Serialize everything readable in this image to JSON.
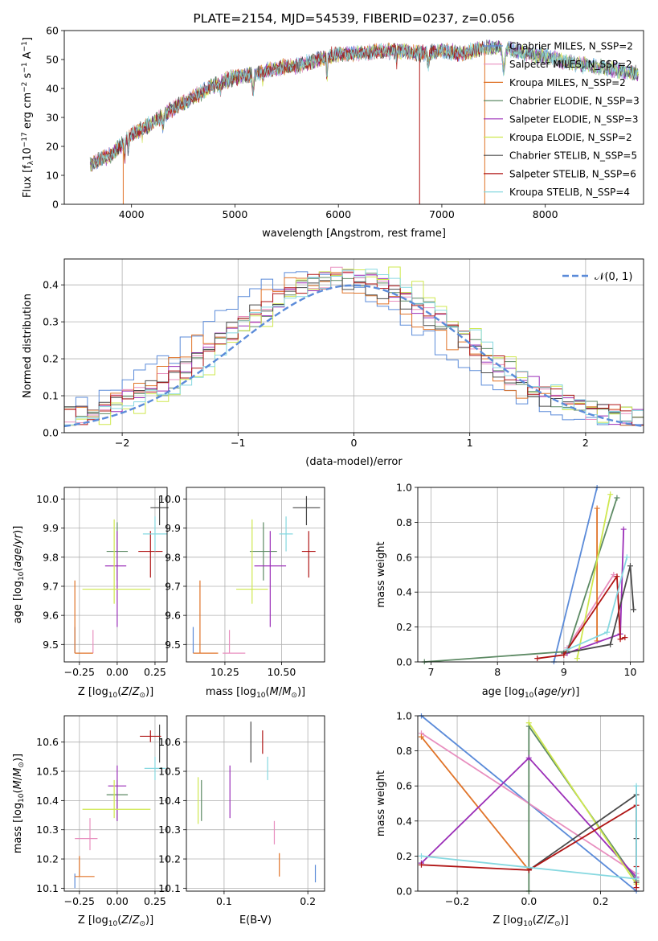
{
  "colors": {
    "grid": "#b0b0b0",
    "normal_curve": "#5b8bd9",
    "series": [
      "#5b8bd9",
      "#e88fbf",
      "#e07328",
      "#5d8a64",
      "#9b2fb8",
      "#cfe84f",
      "#4a4a4a",
      "#b01515",
      "#86d8e0"
    ]
  },
  "chart_data": [
    {
      "id": "spectrum",
      "type": "line",
      "title": "PLATE=2154, MJD=54539, FIBERID=0237, z=0.056",
      "xlabel": "wavelength [Angstrom, rest frame]",
      "ylabel": "Flux [f_λ 10^-17 erg cm^-2 s^-1 A^-1]",
      "xlim": [
        3350,
        8950
      ],
      "ylim": [
        0,
        60
      ],
      "xticks": [
        "4000",
        "5000",
        "6000",
        "7000",
        "8000"
      ],
      "yticks": [
        "0",
        "10",
        "20",
        "30",
        "40",
        "50",
        "60"
      ],
      "legend_position": "right",
      "legend": [
        "Chabrier MILES, N_SSP=2",
        "Salpeter MILES, N_SSP=2",
        "Kroupa MILES, N_SSP=2",
        "Chabrier ELODIE, N_SSP=3",
        "Salpeter ELODIE, N_SSP=3",
        "Kroupa ELODIE, N_SSP=2",
        "Chabrier STELIB, N_SSP=5",
        "Salpeter STELIB, N_SSP=6",
        "Kroupa STELIB, N_SSP=4"
      ],
      "continuum": [
        [
          3600,
          14
        ],
        [
          3800,
          17
        ],
        [
          4000,
          24
        ],
        [
          4200,
          28
        ],
        [
          4400,
          33
        ],
        [
          4600,
          37
        ],
        [
          4800,
          41
        ],
        [
          5000,
          44
        ],
        [
          5200,
          45
        ],
        [
          5400,
          47
        ],
        [
          5600,
          48
        ],
        [
          5800,
          50
        ],
        [
          6000,
          52
        ],
        [
          6200,
          52
        ],
        [
          6400,
          53
        ],
        [
          6600,
          53
        ],
        [
          6800,
          52
        ],
        [
          7000,
          53
        ],
        [
          7200,
          52
        ],
        [
          7400,
          54
        ],
        [
          7600,
          54
        ],
        [
          7800,
          52
        ],
        [
          8000,
          51
        ],
        [
          8200,
          49
        ],
        [
          8400,
          48
        ],
        [
          8600,
          47
        ],
        [
          8900,
          45
        ]
      ],
      "series_ranges": [
        [
          3600,
          8900
        ],
        [
          3600,
          8900
        ],
        [
          3600,
          7400
        ],
        [
          3600,
          8900
        ],
        [
          3600,
          8900
        ],
        [
          3600,
          8900
        ],
        [
          3600,
          8900
        ],
        [
          3600,
          7400
        ],
        [
          3600,
          8900
        ]
      ]
    },
    {
      "id": "residuals",
      "type": "histogram",
      "xlabel": "(data-model)/error",
      "ylabel": "Normed distribution",
      "xlim": [
        -2.5,
        2.5
      ],
      "ylim": [
        0,
        0.47
      ],
      "xticks": [
        "−2",
        "−1",
        "0",
        "1",
        "2"
      ],
      "yticks": [
        "0.0",
        "0.1",
        "0.2",
        "0.3",
        "0.4"
      ],
      "legend_position": "top-right",
      "normal_label": "𝒩(0, 1)"
    },
    {
      "id": "Z-age",
      "type": "errorbar",
      "xlabel": "Z [log10(Z/Z⊙)]",
      "ylabel": "age [log10(age/yr)]",
      "xlim": [
        -0.35,
        0.33
      ],
      "ylim": [
        9.44,
        10.04
      ],
      "xticks": [
        "−0.25",
        "0.00",
        "0.25"
      ],
      "yticks": [
        "9.5",
        "9.6",
        "9.7",
        "9.8",
        "9.9",
        "10.0"
      ],
      "points": [
        {
          "x": -0.28,
          "y": 9.47,
          "xlo": 0.0,
          "xhi": 0.0,
          "ylo": 0.0,
          "yhi": 0.09
        },
        {
          "x": -0.16,
          "y": 9.47,
          "xlo": 0.0,
          "xhi": 0.0,
          "ylo": 0.0,
          "yhi": 0.08
        },
        {
          "x": -0.28,
          "y": 9.47,
          "xlo": 0.0,
          "xhi": 0.12,
          "ylo": 0.0,
          "yhi": 0.25
        },
        {
          "x": 0.0,
          "y": 9.82,
          "xlo": 0.07,
          "xhi": 0.07,
          "ylo": 0.1,
          "yhi": 0.1
        },
        {
          "x": 0.0,
          "y": 9.77,
          "xlo": 0.08,
          "xhi": 0.06,
          "ylo": 0.21,
          "yhi": 0.12
        },
        {
          "x": -0.02,
          "y": 9.69,
          "xlo": 0.21,
          "xhi": 0.24,
          "ylo": 0.05,
          "yhi": 0.24
        },
        {
          "x": 0.28,
          "y": 9.97,
          "xlo": 0.06,
          "xhi": 0.06,
          "ylo": 0.06,
          "yhi": 0.04
        },
        {
          "x": 0.22,
          "y": 9.82,
          "xlo": 0.08,
          "xhi": 0.08,
          "ylo": 0.09,
          "yhi": 0.07
        },
        {
          "x": 0.25,
          "y": 9.88,
          "xlo": 0.08,
          "xhi": 0.08,
          "ylo": 0.06,
          "yhi": 0.06
        }
      ]
    },
    {
      "id": "mass-age",
      "type": "errorbar",
      "xlabel": "mass [log10(M/M⊙)]",
      "ylabel": "",
      "xlim": [
        10.08,
        10.69
      ],
      "ylim": [
        9.44,
        10.04
      ],
      "xticks": [
        "10.25",
        "10.50"
      ],
      "yticks": [
        "9.5",
        "9.6",
        "9.7",
        "9.8",
        "9.9",
        "10.0"
      ],
      "points": [
        {
          "x": 10.11,
          "y": 9.47,
          "xlo": 0.0,
          "xhi": 0.0,
          "ylo": 0.0,
          "yhi": 0.09
        },
        {
          "x": 10.27,
          "y": 9.47,
          "xlo": 0.03,
          "xhi": 0.07,
          "ylo": 0.0,
          "yhi": 0.08
        },
        {
          "x": 10.14,
          "y": 9.47,
          "xlo": 0.03,
          "xhi": 0.08,
          "ylo": 0.0,
          "yhi": 0.25
        },
        {
          "x": 10.42,
          "y": 9.82,
          "xlo": 0.06,
          "xhi": 0.06,
          "ylo": 0.1,
          "yhi": 0.1
        },
        {
          "x": 10.45,
          "y": 9.77,
          "xlo": 0.07,
          "xhi": 0.07,
          "ylo": 0.21,
          "yhi": 0.12
        },
        {
          "x": 10.37,
          "y": 9.69,
          "xlo": 0.07,
          "xhi": 0.07,
          "ylo": 0.05,
          "yhi": 0.24
        },
        {
          "x": 10.61,
          "y": 9.97,
          "xlo": 0.06,
          "xhi": 0.06,
          "ylo": 0.06,
          "yhi": 0.04
        },
        {
          "x": 10.62,
          "y": 9.82,
          "xlo": 0.03,
          "xhi": 0.03,
          "ylo": 0.09,
          "yhi": 0.07
        },
        {
          "x": 10.52,
          "y": 9.88,
          "xlo": 0.03,
          "xhi": 0.03,
          "ylo": 0.06,
          "yhi": 0.06
        }
      ]
    },
    {
      "id": "age-weight",
      "type": "line",
      "xlabel": "age [log10(age/yr)]",
      "ylabel": "mass weight",
      "xlim": [
        6.8,
        10.2
      ],
      "ylim": [
        0,
        1
      ],
      "xticks": [
        "7",
        "8",
        "9",
        "10"
      ],
      "yticks": [
        "0.0",
        "0.2",
        "0.4",
        "0.6",
        "0.8",
        "1.0"
      ],
      "series": [
        {
          "points": [
            [
              8.85,
              0.0
            ],
            [
              9.5,
              1.0
            ]
          ]
        },
        {
          "points": [
            [
              9.05,
              0.08
            ],
            [
              9.75,
              0.5
            ]
          ]
        },
        {
          "points": [
            [
              9.5,
              0.12
            ],
            [
              9.5,
              0.88
            ]
          ]
        },
        {
          "points": [
            [
              6.9,
              0.0
            ],
            [
              9.05,
              0.06
            ],
            [
              9.8,
              0.94
            ]
          ]
        },
        {
          "points": [
            [
              9.05,
              0.05
            ],
            [
              9.85,
              0.16
            ],
            [
              9.9,
              0.76
            ]
          ]
        },
        {
          "points": [
            [
              9.2,
              0.02
            ],
            [
              9.7,
              0.96
            ]
          ]
        },
        {
          "points": [
            [
              9.0,
              0.05
            ],
            [
              9.7,
              0.1
            ],
            [
              10.0,
              0.55
            ],
            [
              10.05,
              0.3
            ]
          ]
        },
        {
          "points": [
            [
              8.6,
              0.02
            ],
            [
              9.0,
              0.04
            ],
            [
              9.8,
              0.49
            ],
            [
              9.85,
              0.13
            ],
            [
              9.92,
              0.14
            ]
          ]
        },
        {
          "points": [
            [
              9.05,
              0.07
            ],
            [
              9.65,
              0.17
            ],
            [
              9.95,
              0.6
            ]
          ]
        }
      ]
    },
    {
      "id": "Z-mass",
      "type": "errorbar",
      "xlabel": "Z [log10(Z/Z⊙)]",
      "ylabel": "mass [log10(M/M⊙)]",
      "xlim": [
        -0.35,
        0.33
      ],
      "ylim": [
        10.09,
        10.69
      ],
      "xticks": [
        "−0.25",
        "0.00",
        "0.25"
      ],
      "yticks": [
        "10.1",
        "10.2",
        "10.3",
        "10.4",
        "10.5",
        "10.6"
      ],
      "points": [
        {
          "x": -0.28,
          "y": 10.12,
          "xlo": 0.0,
          "xhi": 0.0,
          "ylo": 0.02,
          "yhi": 0.03
        },
        {
          "x": -0.18,
          "y": 10.27,
          "xlo": 0.1,
          "xhi": 0.05,
          "ylo": 0.04,
          "yhi": 0.07
        },
        {
          "x": -0.25,
          "y": 10.14,
          "xlo": 0.03,
          "xhi": 0.1,
          "ylo": 0.0,
          "yhi": 0.07
        },
        {
          "x": 0.0,
          "y": 10.42,
          "xlo": 0.07,
          "xhi": 0.07,
          "ylo": 0.09,
          "yhi": 0.05
        },
        {
          "x": 0.0,
          "y": 10.45,
          "xlo": 0.06,
          "xhi": 0.06,
          "ylo": 0.12,
          "yhi": 0.07
        },
        {
          "x": -0.02,
          "y": 10.37,
          "xlo": 0.21,
          "xhi": 0.24,
          "ylo": 0.03,
          "yhi": 0.1
        },
        {
          "x": 0.28,
          "y": 10.61,
          "xlo": 0.0,
          "xhi": 0.0,
          "ylo": 0.08,
          "yhi": 0.05
        },
        {
          "x": 0.22,
          "y": 10.62,
          "xlo": 0.07,
          "xhi": 0.07,
          "ylo": 0.02,
          "yhi": 0.02
        },
        {
          "x": 0.25,
          "y": 10.51,
          "xlo": 0.07,
          "xhi": 0.07,
          "ylo": 0.04,
          "yhi": 0.04
        }
      ]
    },
    {
      "id": "ebv-mass",
      "type": "errorbar",
      "xlabel": "E(B-V)",
      "ylabel": "",
      "xlim": [
        0.055,
        0.22
      ],
      "ylim": [
        10.09,
        10.69
      ],
      "xticks": [
        "0.1",
        "0.2"
      ],
      "yticks": [
        "10.1",
        "10.2",
        "10.3",
        "10.4",
        "10.5",
        "10.6"
      ],
      "points": [
        {
          "x": 0.209,
          "y": 10.15,
          "xlo": 0.0,
          "xhi": 0.0,
          "ylo": 0.03,
          "yhi": 0.03
        },
        {
          "x": 0.16,
          "y": 10.29,
          "xlo": 0.0,
          "xhi": 0.0,
          "ylo": 0.04,
          "yhi": 0.04
        },
        {
          "x": 0.166,
          "y": 10.18,
          "xlo": 0.0,
          "xhi": 0.0,
          "ylo": 0.04,
          "yhi": 0.04
        },
        {
          "x": 0.073,
          "y": 10.4,
          "xlo": 0.0,
          "xhi": 0.0,
          "ylo": 0.07,
          "yhi": 0.07
        },
        {
          "x": 0.107,
          "y": 10.43,
          "xlo": 0.0,
          "xhi": 0.0,
          "ylo": 0.09,
          "yhi": 0.09
        },
        {
          "x": 0.069,
          "y": 10.4,
          "xlo": 0.0,
          "xhi": 0.0,
          "ylo": 0.08,
          "yhi": 0.08
        },
        {
          "x": 0.132,
          "y": 10.6,
          "xlo": 0.0,
          "xhi": 0.0,
          "ylo": 0.07,
          "yhi": 0.07
        },
        {
          "x": 0.146,
          "y": 10.6,
          "xlo": 0.0,
          "xhi": 0.0,
          "ylo": 0.04,
          "yhi": 0.04
        },
        {
          "x": 0.152,
          "y": 10.51,
          "xlo": 0.0,
          "xhi": 0.0,
          "ylo": 0.04,
          "yhi": 0.04
        }
      ]
    },
    {
      "id": "Z-weight",
      "type": "line",
      "xlabel": "Z [log10(Z/Z⊙)]",
      "ylabel": "mass weight",
      "xlim": [
        -0.31,
        0.32
      ],
      "ylim": [
        0,
        1
      ],
      "xticks": [
        "−0.2",
        "0.0",
        "0.2"
      ],
      "yticks": [
        "0.0",
        "0.2",
        "0.4",
        "0.6",
        "0.8",
        "1.0"
      ],
      "series": [
        {
          "points": [
            [
              -0.3,
              1.0
            ],
            [
              0.3,
              0.0
            ]
          ]
        },
        {
          "points": [
            [
              -0.3,
              0.9
            ],
            [
              0.3,
              0.1
            ]
          ]
        },
        {
          "points": [
            [
              -0.3,
              0.88
            ],
            [
              0.0,
              0.12
            ]
          ]
        },
        {
          "points": [
            [
              0.0,
              0.0
            ],
            [
              0.0,
              0.94
            ],
            [
              0.3,
              0.06
            ]
          ]
        },
        {
          "points": [
            [
              -0.3,
              0.16
            ],
            [
              0.0,
              0.76
            ],
            [
              0.3,
              0.08
            ]
          ]
        },
        {
          "points": [
            [
              0.0,
              0.96
            ],
            [
              0.3,
              0.04
            ]
          ]
        },
        {
          "points": [
            [
              0.0,
              0.12
            ],
            [
              0.3,
              0.55
            ],
            [
              0.3,
              0.3
            ],
            [
              0.3,
              0.05
            ]
          ]
        },
        {
          "points": [
            [
              -0.3,
              0.15
            ],
            [
              0.0,
              0.12
            ],
            [
              0.3,
              0.49
            ],
            [
              0.3,
              0.14
            ],
            [
              0.3,
              0.02
            ]
          ]
        },
        {
          "points": [
            [
              -0.3,
              0.2
            ],
            [
              0.3,
              0.07
            ],
            [
              0.3,
              0.6
            ]
          ]
        }
      ]
    }
  ]
}
